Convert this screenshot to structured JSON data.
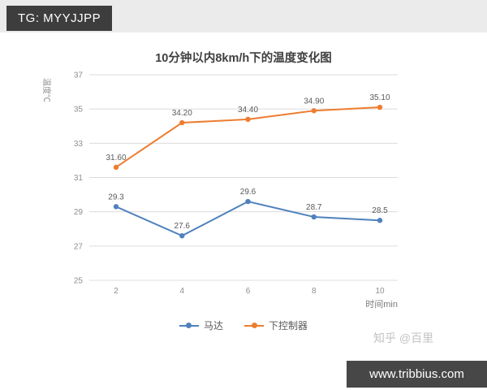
{
  "badges": {
    "top_left": "TG: MYYJJPP",
    "watermark": "知乎 @百里",
    "bottom_right": "www.tribbius.com"
  },
  "chart_data": {
    "type": "line",
    "title": "10分钟以内8km/h下的温度变化图",
    "xlabel": "时间min",
    "ylabel": "温度℃",
    "x": [
      2,
      4,
      6,
      8,
      10
    ],
    "ylim": [
      25,
      37
    ],
    "yticks": [
      37,
      35,
      33,
      31,
      29,
      27,
      25
    ],
    "grid": true,
    "legend_position": "bottom",
    "series": [
      {
        "name": "马达",
        "color": "#4f81bd",
        "values": [
          29.3,
          27.6,
          29.6,
          28.7,
          28.5
        ],
        "labels": [
          "29.3",
          "27.6",
          "29.6",
          "28.7",
          "28.5"
        ]
      },
      {
        "name": "下控制器",
        "color": "#ed7d31",
        "values": [
          31.6,
          34.2,
          34.4,
          34.9,
          35.1
        ],
        "labels": [
          "31.60",
          "34.20",
          "34.40",
          "34.90",
          "35.10"
        ]
      }
    ]
  }
}
